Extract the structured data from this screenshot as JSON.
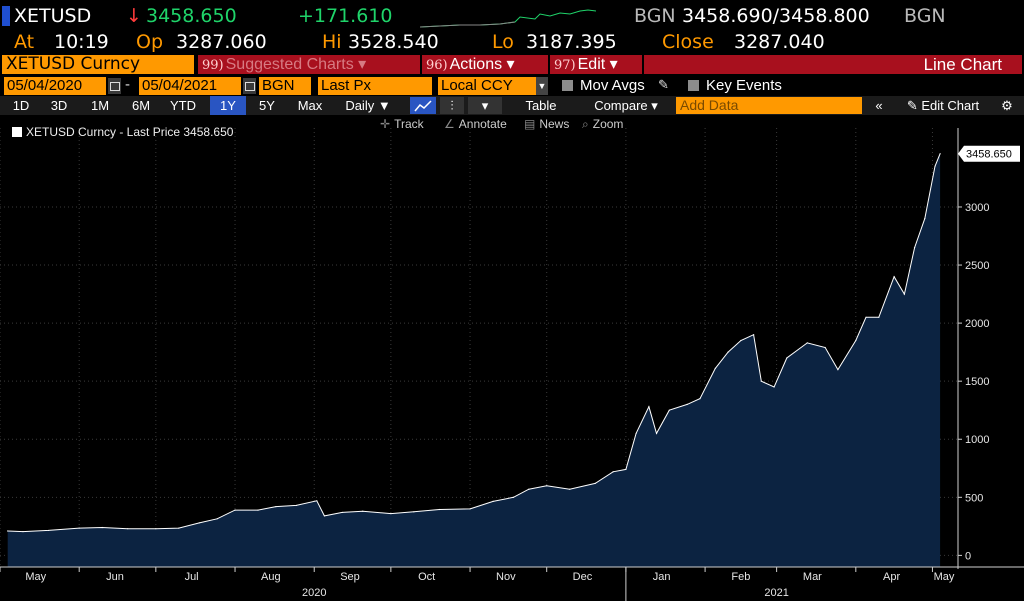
{
  "quote": {
    "ticker": "XETUSD",
    "direction_arrow": "↓",
    "last": "3458.650",
    "change": "+171.610",
    "source": "BGN",
    "bid_ask": "3458.690/3458.800",
    "source2": "BGN",
    "at_label": "At",
    "time": "10:19",
    "op_label": "Op",
    "open": "3287.060",
    "hi_label": "Hi",
    "high": "3528.540",
    "lo_label": "Lo",
    "low": "3187.395",
    "close_label": "Close",
    "close": "3287.040"
  },
  "toolbar": {
    "security": "XETUSD Curncy",
    "suggested_num": "99)",
    "suggested_label": "Suggested Charts ▾",
    "actions_num": "96)",
    "actions_label": "Actions ▾",
    "edit_num": "97)",
    "edit_label": "Edit ▾",
    "view_title": "Line Chart"
  },
  "settings": {
    "start_date": "05/04/2020",
    "date_sep": "-",
    "end_date": "05/04/2021",
    "source": "BGN",
    "field": "Last Px",
    "currency": "Local CCY",
    "mov_avgs": "Mov Avgs",
    "key_events": "Key Events"
  },
  "periods": {
    "items": [
      "1D",
      "3D",
      "1M",
      "6M",
      "YTD",
      "1Y",
      "5Y",
      "Max"
    ],
    "active": "1Y",
    "frequency": "Daily ▼",
    "table": "Table",
    "compare": "Compare ▾",
    "add_data_placeholder": "Add Data",
    "edit_chart": "Edit Chart"
  },
  "tools": {
    "track": "Track",
    "annotate": "Annotate",
    "news": "News",
    "zoom": "Zoom"
  },
  "legend": {
    "text": "XETUSD Curncy - Last Price 3458.650"
  },
  "colors": {
    "area_fill": "#0c2341",
    "line": "#ffffff",
    "grid": "#3a3a3a",
    "accent_orange": "#ff9900",
    "toolbar_red": "#a8101e",
    "up_green": "#1fd46a",
    "down_red": "#ff3b3b"
  },
  "chart_data": {
    "type": "area",
    "series": [
      {
        "name": "XETUSD Curncy - Last Price",
        "x": [
          "2020-05-04",
          "2020-05-10",
          "2020-05-20",
          "2020-06-01",
          "2020-06-10",
          "2020-06-20",
          "2020-07-01",
          "2020-07-10",
          "2020-07-18",
          "2020-07-25",
          "2020-08-01",
          "2020-08-10",
          "2020-08-17",
          "2020-08-25",
          "2020-09-02",
          "2020-09-05",
          "2020-09-12",
          "2020-09-20",
          "2020-10-01",
          "2020-10-10",
          "2020-10-20",
          "2020-11-01",
          "2020-11-10",
          "2020-11-18",
          "2020-11-24",
          "2020-12-01",
          "2020-12-10",
          "2020-12-20",
          "2020-12-27",
          "2021-01-01",
          "2021-01-05",
          "2021-01-10",
          "2021-01-13",
          "2021-01-18",
          "2021-01-25",
          "2021-01-30",
          "2021-02-05",
          "2021-02-10",
          "2021-02-15",
          "2021-02-20",
          "2021-02-23",
          "2021-02-28",
          "2021-03-05",
          "2021-03-13",
          "2021-03-20",
          "2021-03-25",
          "2021-04-01",
          "2021-04-05",
          "2021-04-10",
          "2021-04-16",
          "2021-04-20",
          "2021-04-24",
          "2021-04-28",
          "2021-05-02",
          "2021-05-04"
        ],
        "values": [
          210,
          205,
          215,
          235,
          240,
          230,
          230,
          235,
          280,
          315,
          390,
          390,
          420,
          430,
          470,
          340,
          370,
          380,
          360,
          375,
          395,
          400,
          465,
          500,
          570,
          600,
          570,
          620,
          720,
          740,
          1050,
          1280,
          1050,
          1250,
          1300,
          1350,
          1610,
          1750,
          1850,
          1900,
          1500,
          1450,
          1700,
          1830,
          1790,
          1600,
          1850,
          2050,
          2050,
          2400,
          2250,
          2650,
          2900,
          3350,
          3458.65
        ]
      }
    ],
    "x_tick_labels": [
      "May",
      "Jun",
      "Jul",
      "Aug",
      "Sep",
      "Oct",
      "Nov",
      "Dec",
      "Jan",
      "Feb",
      "Mar",
      "Apr",
      "May"
    ],
    "x_year_labels": [
      "2020",
      "2021"
    ],
    "y_ticks": [
      0,
      500,
      1000,
      1500,
      2000,
      2500,
      3000
    ],
    "ylim": [
      -100,
      3680
    ],
    "last_value_label": "3458.650",
    "grid": true,
    "legend_position": "top-left"
  }
}
